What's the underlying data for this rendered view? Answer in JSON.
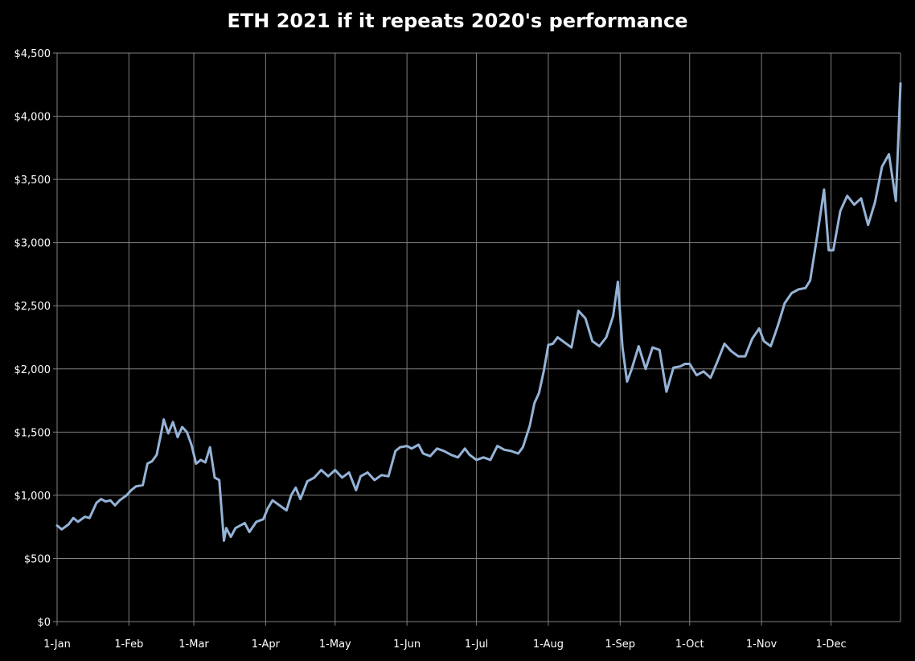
{
  "chart_data": {
    "type": "line",
    "title": "ETH 2021 if it repeats 2020's performance",
    "xlabel": "",
    "ylabel": "",
    "ylim": [
      0,
      4500
    ],
    "yticks": [
      {
        "value": 0,
        "label": "$0"
      },
      {
        "value": 500,
        "label": "$500"
      },
      {
        "value": 1000,
        "label": "$1,000"
      },
      {
        "value": 1500,
        "label": "$1,500"
      },
      {
        "value": 2000,
        "label": "$2,000"
      },
      {
        "value": 2500,
        "label": "$2,500"
      },
      {
        "value": 3000,
        "label": "$3,000"
      },
      {
        "value": 3500,
        "label": "$3,500"
      },
      {
        "value": 4000,
        "label": "$4,000"
      },
      {
        "value": 4500,
        "label": "$4,500"
      }
    ],
    "xticks": [
      {
        "date": "2021-01-01",
        "label": "1-Jan"
      },
      {
        "date": "2021-02-01",
        "label": "1-Feb"
      },
      {
        "date": "2021-03-01",
        "label": "1-Mar"
      },
      {
        "date": "2021-04-01",
        "label": "1-Apr"
      },
      {
        "date": "2021-05-01",
        "label": "1-May"
      },
      {
        "date": "2021-06-01",
        "label": "1-Jun"
      },
      {
        "date": "2021-07-01",
        "label": "1-Jul"
      },
      {
        "date": "2021-08-01",
        "label": "1-Aug"
      },
      {
        "date": "2021-09-01",
        "label": "1-Sep"
      },
      {
        "date": "2021-10-01",
        "label": "1-Oct"
      },
      {
        "date": "2021-11-01",
        "label": "1-Nov"
      },
      {
        "date": "2021-12-01",
        "label": "1-Dec"
      }
    ],
    "xlim": [
      "2021-01-01",
      "2021-12-31"
    ],
    "grid": true,
    "legend": "none",
    "series_color": "#95b3d7",
    "grid_color": "#808080",
    "background": "#000000",
    "series": [
      {
        "x": [
          "2021-01-01",
          "2021-01-03",
          "2021-01-06",
          "2021-01-08",
          "2021-01-10",
          "2021-01-13",
          "2021-01-15",
          "2021-01-18",
          "2021-01-20",
          "2021-01-22",
          "2021-01-24",
          "2021-01-26",
          "2021-01-28",
          "2021-01-31",
          "2021-02-02",
          "2021-02-04",
          "2021-02-07",
          "2021-02-09",
          "2021-02-11",
          "2021-02-13",
          "2021-02-15",
          "2021-02-16",
          "2021-02-18",
          "2021-02-20",
          "2021-02-22",
          "2021-02-24",
          "2021-02-26",
          "2021-02-28",
          "2021-03-02",
          "2021-03-04",
          "2021-03-06",
          "2021-03-08",
          "2021-03-10",
          "2021-03-12",
          "2021-03-14",
          "2021-03-15",
          "2021-03-17",
          "2021-03-19",
          "2021-03-21",
          "2021-03-23",
          "2021-03-25",
          "2021-03-28",
          "2021-03-31",
          "2021-04-02",
          "2021-04-04",
          "2021-04-07",
          "2021-04-10",
          "2021-04-12",
          "2021-04-14",
          "2021-04-16",
          "2021-04-19",
          "2021-04-22",
          "2021-04-25",
          "2021-04-28",
          "2021-05-01",
          "2021-05-04",
          "2021-05-07",
          "2021-05-10",
          "2021-05-12",
          "2021-05-15",
          "2021-05-18",
          "2021-05-21",
          "2021-05-24",
          "2021-05-27",
          "2021-05-29",
          "2021-06-01",
          "2021-06-03",
          "2021-06-06",
          "2021-06-08",
          "2021-06-11",
          "2021-06-14",
          "2021-06-17",
          "2021-06-20",
          "2021-06-23",
          "2021-06-26",
          "2021-06-28",
          "2021-07-01",
          "2021-07-04",
          "2021-07-07",
          "2021-07-10",
          "2021-07-13",
          "2021-07-16",
          "2021-07-19",
          "2021-07-21",
          "2021-07-24",
          "2021-07-26",
          "2021-07-28",
          "2021-07-30",
          "2021-08-01",
          "2021-08-03",
          "2021-08-05",
          "2021-08-08",
          "2021-08-11",
          "2021-08-14",
          "2021-08-17",
          "2021-08-20",
          "2021-08-23",
          "2021-08-26",
          "2021-08-29",
          "2021-08-31",
          "2021-09-02",
          "2021-09-04",
          "2021-09-06",
          "2021-09-09",
          "2021-09-12",
          "2021-09-15",
          "2021-09-18",
          "2021-09-21",
          "2021-09-24",
          "2021-09-27",
          "2021-09-29",
          "2021-10-01",
          "2021-10-04",
          "2021-10-07",
          "2021-10-10",
          "2021-10-13",
          "2021-10-16",
          "2021-10-19",
          "2021-10-22",
          "2021-10-25",
          "2021-10-28",
          "2021-10-31",
          "2021-11-02",
          "2021-11-05",
          "2021-11-08",
          "2021-11-11",
          "2021-11-14",
          "2021-11-17",
          "2021-11-20",
          "2021-11-22",
          "2021-11-25",
          "2021-11-28",
          "2021-11-30",
          "2021-12-02",
          "2021-12-05",
          "2021-12-08",
          "2021-12-11",
          "2021-12-14",
          "2021-12-17",
          "2021-12-20",
          "2021-12-23",
          "2021-12-26",
          "2021-12-29",
          "2021-12-31"
        ],
        "y": [
          760,
          730,
          770,
          820,
          790,
          830,
          820,
          940,
          970,
          950,
          960,
          920,
          960,
          1000,
          1040,
          1070,
          1080,
          1250,
          1270,
          1320,
          1500,
          1600,
          1490,
          1580,
          1460,
          1540,
          1500,
          1400,
          1250,
          1280,
          1260,
          1380,
          1140,
          1120,
          640,
          740,
          670,
          740,
          760,
          780,
          710,
          790,
          810,
          900,
          960,
          920,
          880,
          1000,
          1060,
          970,
          1110,
          1140,
          1200,
          1150,
          1200,
          1140,
          1180,
          1040,
          1150,
          1180,
          1120,
          1160,
          1150,
          1350,
          1380,
          1390,
          1370,
          1400,
          1330,
          1310,
          1370,
          1350,
          1320,
          1300,
          1370,
          1320,
          1280,
          1300,
          1280,
          1390,
          1360,
          1350,
          1330,
          1380,
          1550,
          1730,
          1810,
          1980,
          2190,
          2200,
          2250,
          2210,
          2170,
          2460,
          2400,
          2220,
          2180,
          2250,
          2420,
          2690,
          2170,
          1900,
          2000,
          2180,
          2000,
          2170,
          2150,
          1820,
          2010,
          2020,
          2040,
          2040,
          1950,
          1980,
          1930,
          2060,
          2200,
          2140,
          2100,
          2100,
          2240,
          2320,
          2220,
          2180,
          2340,
          2520,
          2600,
          2630,
          2640,
          2700,
          3050,
          3420,
          2940,
          2940,
          3250,
          3370,
          3300,
          3350,
          3140,
          3320,
          3600,
          3700,
          3330,
          4260
        ]
      }
    ]
  }
}
